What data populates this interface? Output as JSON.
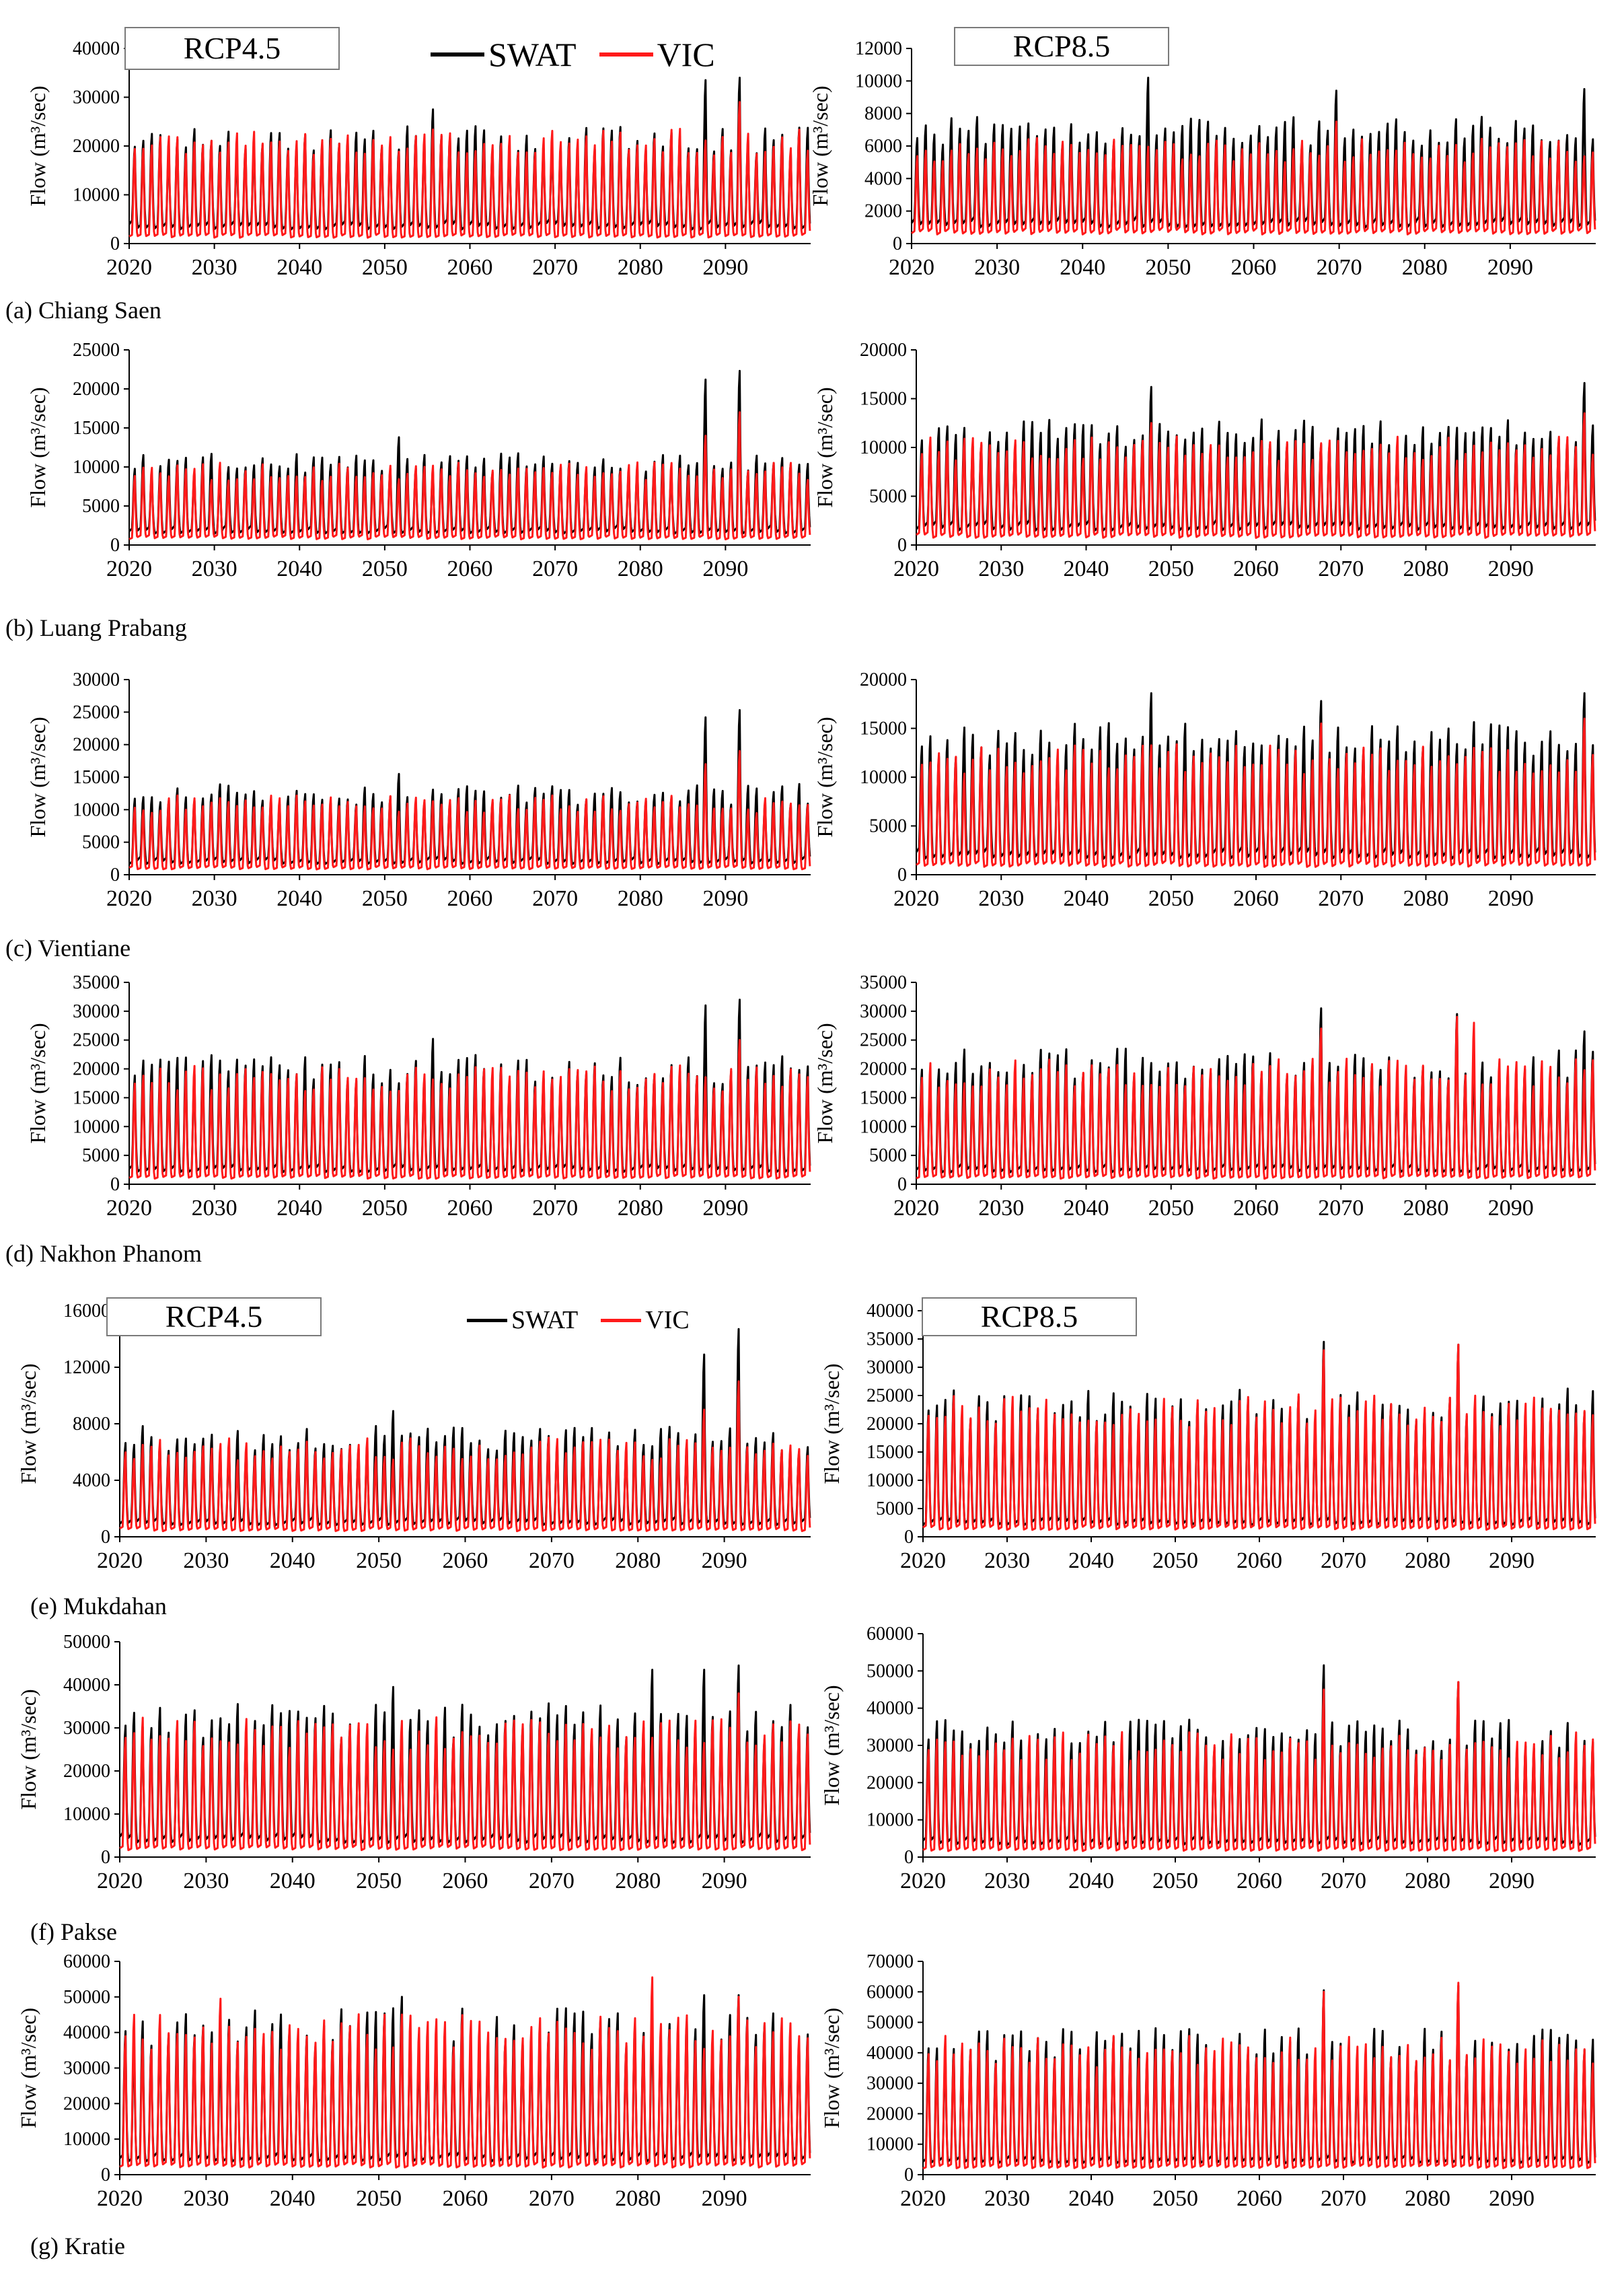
{
  "legend": {
    "series": [
      {
        "name": "SWAT",
        "color": "#000000"
      },
      {
        "name": "VIC",
        "color": "#ff1a1a"
      }
    ]
  },
  "scenario_boxes": {
    "top_left": "RCP4.5",
    "top_right": "RCP8.5",
    "mid_left": "RCP4.5",
    "mid_right": "RCP8.5"
  },
  "panel_labels": [
    "(a) Chiang Saen",
    "(b) Luang Prabang",
    "(c) Vientiane",
    "(d) Nakhon Phanom",
    "(e) Mukdahan",
    "(f) Pakse",
    "(g) Kratie"
  ],
  "chart_data": [
    {
      "type": "line",
      "station": "Chiang Saen",
      "scenario": "RCP4.5",
      "ylabel": "Flow (m³/sec)",
      "xlim": [
        2020,
        2100
      ],
      "ylim": [
        0,
        40000
      ],
      "yticks": [
        0,
        10000,
        20000,
        30000,
        40000
      ],
      "xticks": [
        2020,
        2030,
        2040,
        2050,
        2060,
        2070,
        2080,
        2090
      ],
      "series": [
        {
          "name": "SWAT",
          "color": "#000000",
          "low": 3500,
          "peak_mean": 21500,
          "peak_spikes": [
            [
              2055,
              27500
            ],
            [
              2087,
              33500
            ],
            [
              2091,
              34000
            ]
          ]
        },
        {
          "name": "VIC",
          "color": "#ff1a1a",
          "low": 1500,
          "peak_mean": 21000,
          "peak_spikes": [
            [
              2091,
              29000
            ]
          ]
        }
      ]
    },
    {
      "type": "line",
      "station": "Chiang Saen",
      "scenario": "RCP8.5",
      "ylabel": "Flow (m³/sec)",
      "xlim": [
        2020,
        2100
      ],
      "ylim": [
        0,
        12000
      ],
      "yticks": [
        0,
        2000,
        4000,
        6000,
        8000,
        10000,
        12000
      ],
      "xticks": [
        2020,
        2030,
        2040,
        2050,
        2060,
        2070,
        2080,
        2090
      ],
      "series": [
        {
          "name": "SWAT",
          "color": "#000000",
          "low": 1200,
          "peak_mean": 7000,
          "peak_spikes": [
            [
              2047,
              10200
            ],
            [
              2069,
              9400
            ],
            [
              2098,
              9500
            ]
          ]
        },
        {
          "name": "VIC",
          "color": "#ff1a1a",
          "low": 700,
          "peak_mean": 5800,
          "peak_spikes": [
            [
              2069,
              7500
            ]
          ]
        }
      ]
    },
    {
      "type": "line",
      "station": "Luang Prabang",
      "scenario": "RCP4.5",
      "ylabel": "Flow (m³/sec)",
      "xlim": [
        2020,
        2100
      ],
      "ylim": [
        0,
        25000
      ],
      "yticks": [
        0,
        5000,
        10000,
        15000,
        20000,
        25000
      ],
      "xticks": [
        2020,
        2030,
        2040,
        2050,
        2060,
        2070,
        2080,
        2090
      ],
      "series": [
        {
          "name": "SWAT",
          "color": "#000000",
          "low": 1800,
          "peak_mean": 10500,
          "peak_spikes": [
            [
              2051,
              13800
            ],
            [
              2087,
              21200
            ],
            [
              2091,
              22300
            ]
          ]
        },
        {
          "name": "VIC",
          "color": "#ff1a1a",
          "low": 900,
          "peak_mean": 9500,
          "peak_spikes": [
            [
              2087,
              14000
            ],
            [
              2091,
              17000
            ]
          ]
        }
      ]
    },
    {
      "type": "line",
      "station": "Luang Prabang",
      "scenario": "RCP8.5",
      "ylabel": "Flow (m³/sec)",
      "xlim": [
        2020,
        2100
      ],
      "ylim": [
        0,
        20000
      ],
      "yticks": [
        0,
        5000,
        10000,
        15000,
        20000
      ],
      "xticks": [
        2020,
        2030,
        2040,
        2050,
        2060,
        2070,
        2080,
        2090
      ],
      "series": [
        {
          "name": "SWAT",
          "color": "#000000",
          "low": 1800,
          "peak_mean": 11500,
          "peak_spikes": [
            [
              2047,
              16200
            ],
            [
              2098,
              16600
            ]
          ]
        },
        {
          "name": "VIC",
          "color": "#ff1a1a",
          "low": 900,
          "peak_mean": 10000,
          "peak_spikes": [
            [
              2047,
              12500
            ],
            [
              2098,
              13500
            ]
          ]
        }
      ]
    },
    {
      "type": "line",
      "station": "Vientiane",
      "scenario": "RCP4.5",
      "ylabel": "Flow (m³/sec)",
      "xlim": [
        2020,
        2100
      ],
      "ylim": [
        0,
        30000
      ],
      "yticks": [
        0,
        5000,
        10000,
        15000,
        20000,
        25000,
        30000
      ],
      "xticks": [
        2020,
        2030,
        2040,
        2050,
        2060,
        2070,
        2080,
        2090
      ],
      "series": [
        {
          "name": "SWAT",
          "color": "#000000",
          "low": 2000,
          "peak_mean": 12500,
          "peak_spikes": [
            [
              2051,
              15500
            ],
            [
              2087,
              24200
            ],
            [
              2091,
              25300
            ]
          ]
        },
        {
          "name": "VIC",
          "color": "#ff1a1a",
          "low": 1000,
          "peak_mean": 11000,
          "peak_spikes": [
            [
              2087,
              17000
            ],
            [
              2091,
              19000
            ]
          ]
        }
      ]
    },
    {
      "type": "line",
      "station": "Vientiane",
      "scenario": "RCP8.5",
      "ylabel": "Flow (m³/sec)",
      "xlim": [
        2020,
        2100
      ],
      "ylim": [
        0,
        20000
      ],
      "yticks": [
        0,
        5000,
        10000,
        15000,
        20000
      ],
      "xticks": [
        2020,
        2030,
        2040,
        2050,
        2060,
        2070,
        2080,
        2090
      ],
      "series": [
        {
          "name": "SWAT",
          "color": "#000000",
          "low": 2000,
          "peak_mean": 14000,
          "peak_spikes": [
            [
              2047,
              18600
            ],
            [
              2067,
              17800
            ],
            [
              2098,
              18600
            ]
          ]
        },
        {
          "name": "VIC",
          "color": "#ff1a1a",
          "low": 1000,
          "peak_mean": 12000,
          "peak_spikes": [
            [
              2067,
              15500
            ],
            [
              2098,
              16000
            ]
          ]
        }
      ]
    },
    {
      "type": "line",
      "station": "Nakhon Phanom",
      "scenario": "RCP4.5",
      "ylabel": "Flow (m³/sec)",
      "xlim": [
        2020,
        2100
      ],
      "ylim": [
        0,
        35000
      ],
      "yticks": [
        0,
        5000,
        10000,
        15000,
        20000,
        25000,
        30000,
        35000
      ],
      "xticks": [
        2020,
        2030,
        2040,
        2050,
        2060,
        2070,
        2080,
        2090
      ],
      "series": [
        {
          "name": "SWAT",
          "color": "#000000",
          "low": 2500,
          "peak_mean": 20000,
          "peak_spikes": [
            [
              2055,
              25200
            ],
            [
              2087,
              31000
            ],
            [
              2091,
              32000
            ]
          ]
        },
        {
          "name": "VIC",
          "color": "#ff1a1a",
          "low": 1200,
          "peak_mean": 18500,
          "peak_spikes": [
            [
              2091,
              25000
            ]
          ]
        }
      ]
    },
    {
      "type": "line",
      "station": "Nakhon Phanom",
      "scenario": "RCP8.5",
      "ylabel": "Flow (m³/sec)",
      "xlim": [
        2020,
        2100
      ],
      "ylim": [
        0,
        35000
      ],
      "yticks": [
        0,
        5000,
        10000,
        15000,
        20000,
        25000,
        30000,
        35000
      ],
      "xticks": [
        2020,
        2030,
        2040,
        2050,
        2060,
        2070,
        2080,
        2090
      ],
      "series": [
        {
          "name": "SWAT",
          "color": "#000000",
          "low": 2500,
          "peak_mean": 21000,
          "peak_spikes": [
            [
              2067,
              30500
            ],
            [
              2083,
              29500
            ],
            [
              2098,
              26500
            ]
          ]
        },
        {
          "name": "VIC",
          "color": "#ff1a1a",
          "low": 1200,
          "peak_mean": 19500,
          "peak_spikes": [
            [
              2067,
              27000
            ],
            [
              2083,
              29000
            ],
            [
              2085,
              28000
            ]
          ]
        }
      ]
    },
    {
      "type": "line",
      "station": "Mukdahan",
      "scenario": "RCP4.5",
      "ylabel": "Flow (m³/sec)",
      "xlim": [
        2020,
        2100
      ],
      "ylim": [
        0,
        16000
      ],
      "yticks": [
        0,
        4000,
        8000,
        12000,
        16000
      ],
      "xticks": [
        2020,
        2030,
        2040,
        2050,
        2060,
        2070,
        2080,
        2090
      ],
      "series": [
        {
          "name": "SWAT",
          "color": "#000000",
          "low": 1000,
          "peak_mean": 7000,
          "peak_spikes": [
            [
              2051,
              8900
            ],
            [
              2087,
              12900
            ],
            [
              2091,
              14700
            ]
          ]
        },
        {
          "name": "VIC",
          "color": "#ff1a1a",
          "low": 500,
          "peak_mean": 6300,
          "peak_spikes": [
            [
              2087,
              9000
            ],
            [
              2091,
              11000
            ]
          ]
        }
      ]
    },
    {
      "type": "line",
      "station": "Mukdahan",
      "scenario": "RCP8.5",
      "ylabel": "Flow (m³/sec)",
      "xlim": [
        2020,
        2100
      ],
      "ylim": [
        0,
        40000
      ],
      "yticks": [
        0,
        5000,
        10000,
        15000,
        20000,
        25000,
        30000,
        35000,
        40000
      ],
      "xticks": [
        2020,
        2030,
        2040,
        2050,
        2060,
        2070,
        2080,
        2090
      ],
      "series": [
        {
          "name": "SWAT",
          "color": "#000000",
          "low": 2500,
          "peak_mean": 23500,
          "peak_spikes": [
            [
              2067,
              34500
            ],
            [
              2083,
              34000
            ]
          ]
        },
        {
          "name": "VIC",
          "color": "#ff1a1a",
          "low": 1500,
          "peak_mean": 22500,
          "peak_spikes": [
            [
              2067,
              33000
            ],
            [
              2083,
              34000
            ]
          ]
        }
      ]
    },
    {
      "type": "line",
      "station": "Pakse",
      "scenario": "RCP4.5",
      "ylabel": "Flow (m³/sec)",
      "xlim": [
        2020,
        2100
      ],
      "ylim": [
        0,
        50000
      ],
      "yticks": [
        0,
        10000,
        20000,
        30000,
        40000,
        50000
      ],
      "xticks": [
        2020,
        2030,
        2040,
        2050,
        2060,
        2070,
        2080,
        2090
      ],
      "series": [
        {
          "name": "SWAT",
          "color": "#000000",
          "low": 4000,
          "peak_mean": 32000,
          "peak_spikes": [
            [
              2051,
              39500
            ],
            [
              2081,
              43500
            ],
            [
              2087,
              43500
            ],
            [
              2091,
              44500
            ]
          ]
        },
        {
          "name": "VIC",
          "color": "#ff1a1a",
          "low": 2000,
          "peak_mean": 29000,
          "peak_spikes": [
            [
              2091,
              38000
            ]
          ]
        }
      ]
    },
    {
      "type": "line",
      "station": "Pakse",
      "scenario": "RCP8.5",
      "ylabel": "Flow (m³/sec)",
      "xlim": [
        2020,
        2100
      ],
      "ylim": [
        0,
        60000
      ],
      "yticks": [
        0,
        10000,
        20000,
        30000,
        40000,
        50000,
        60000
      ],
      "xticks": [
        2020,
        2030,
        2040,
        2050,
        2060,
        2070,
        2080,
        2090
      ],
      "series": [
        {
          "name": "SWAT",
          "color": "#000000",
          "low": 4000,
          "peak_mean": 33000,
          "peak_spikes": [
            [
              2067,
              51500
            ],
            [
              2083,
              47000
            ]
          ]
        },
        {
          "name": "VIC",
          "color": "#ff1a1a",
          "low": 2000,
          "peak_mean": 30000,
          "peak_spikes": [
            [
              2067,
              45000
            ],
            [
              2083,
              47000
            ]
          ]
        }
      ]
    },
    {
      "type": "line",
      "station": "Kratie",
      "scenario": "RCP4.5",
      "ylabel": "Flow (m³/sec)",
      "xlim": [
        2020,
        2100
      ],
      "ylim": [
        0,
        60000
      ],
      "yticks": [
        0,
        10000,
        20000,
        30000,
        40000,
        50000,
        60000
      ],
      "xticks": [
        2020,
        2030,
        2040,
        2050,
        2060,
        2070,
        2080,
        2090
      ],
      "series": [
        {
          "name": "SWAT",
          "color": "#000000",
          "low": 4500,
          "peak_mean": 42000,
          "peak_spikes": [
            [
              2052,
              50000
            ],
            [
              2087,
              50500
            ],
            [
              2091,
              50500
            ]
          ]
        },
        {
          "name": "VIC",
          "color": "#ff1a1a",
          "low": 2500,
          "peak_mean": 40500,
          "peak_spikes": [
            [
              2031,
              49500
            ],
            [
              2081,
              55500
            ],
            [
              2091,
              50000
            ]
          ]
        }
      ]
    },
    {
      "type": "line",
      "station": "Kratie",
      "scenario": "RCP8.5",
      "ylabel": "Flow (m³/sec)",
      "xlim": [
        2020,
        2100
      ],
      "ylim": [
        0,
        70000
      ],
      "yticks": [
        0,
        10000,
        20000,
        30000,
        40000,
        50000,
        60000,
        70000
      ],
      "xticks": [
        2020,
        2030,
        2040,
        2050,
        2060,
        2070,
        2080,
        2090
      ],
      "series": [
        {
          "name": "SWAT",
          "color": "#000000",
          "low": 4500,
          "peak_mean": 43000,
          "peak_spikes": [
            [
              2067,
              60500
            ],
            [
              2083,
              62000
            ]
          ]
        },
        {
          "name": "VIC",
          "color": "#ff1a1a",
          "low": 2500,
          "peak_mean": 41000,
          "peak_spikes": [
            [
              2067,
              60000
            ],
            [
              2083,
              63000
            ]
          ]
        }
      ]
    }
  ]
}
